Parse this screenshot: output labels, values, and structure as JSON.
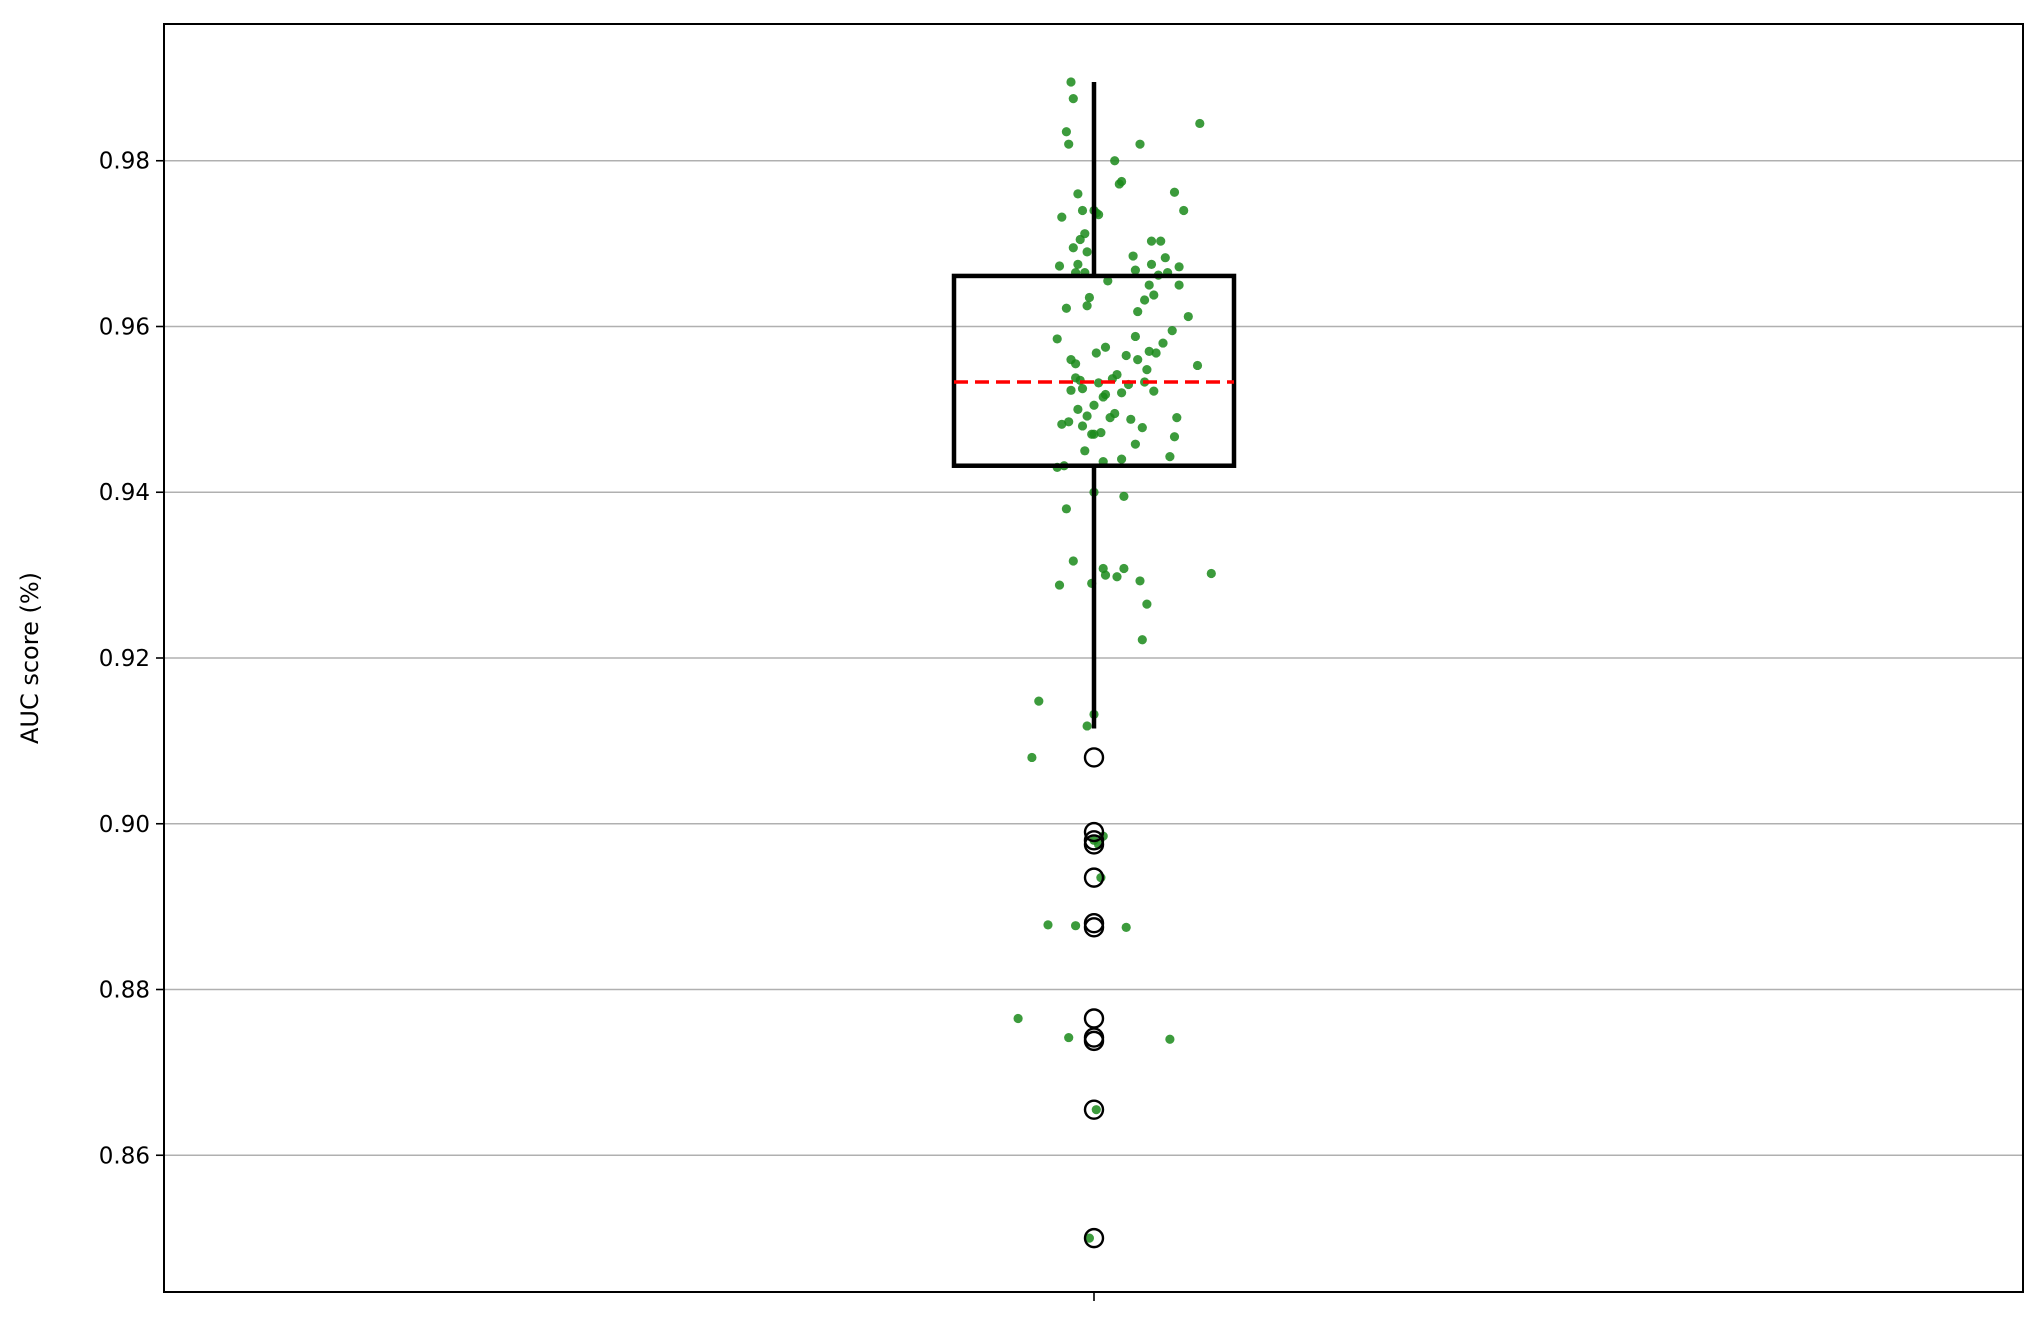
{
  "chart_data": {
    "type": "box",
    "ylabel": "AUC score (%)",
    "yticks": [
      "0.86",
      "0.88",
      "0.90",
      "0.92",
      "0.94",
      "0.96",
      "0.98"
    ],
    "ylim": [
      0.8435,
      0.9965
    ],
    "grid": "horizontal",
    "box": {
      "q1": 0.9432,
      "median": 0.9533,
      "q3": 0.9661,
      "whisker_low": 0.9115,
      "whisker_high": 0.9895,
      "outliers": [
        0.908,
        0.899,
        0.898,
        0.8975,
        0.8935,
        0.888,
        0.8875,
        0.8765,
        0.8742,
        0.8738,
        0.8655,
        0.85
      ]
    },
    "colors": {
      "points": "#1a8a1a",
      "median": "#ff0000",
      "box": "#000000",
      "grid": "#b0b0b0"
    },
    "points": [
      [
        -0.1,
        0.9895
      ],
      [
        -0.09,
        0.9875
      ],
      [
        -0.12,
        0.9835
      ],
      [
        -0.11,
        0.982
      ],
      [
        0.2,
        0.982
      ],
      [
        0.46,
        0.9845
      ],
      [
        0.09,
        0.98
      ],
      [
        0.12,
        0.9775
      ],
      [
        0.11,
        0.9772
      ],
      [
        0.35,
        0.9762
      ],
      [
        -0.07,
        0.976
      ],
      [
        -0.05,
        0.974
      ],
      [
        0.0,
        0.974
      ],
      [
        0.01,
        0.9737
      ],
      [
        0.39,
        0.974
      ],
      [
        0.02,
        0.9735
      ],
      [
        -0.14,
        0.9732
      ],
      [
        -0.04,
        0.9712
      ],
      [
        -0.06,
        0.9705
      ],
      [
        0.25,
        0.9703
      ],
      [
        0.29,
        0.9703
      ],
      [
        -0.03,
        0.969
      ],
      [
        -0.09,
        0.9695
      ],
      [
        0.17,
        0.9685
      ],
      [
        0.31,
        0.9683
      ],
      [
        -0.07,
        0.9675
      ],
      [
        0.25,
        0.9675
      ],
      [
        -0.15,
        0.9673
      ],
      [
        0.37,
        0.9672
      ],
      [
        0.18,
        0.9668
      ],
      [
        -0.08,
        0.9665
      ],
      [
        -0.04,
        0.9665
      ],
      [
        0.28,
        0.9662
      ],
      [
        0.32,
        0.9665
      ],
      [
        0.06,
        0.9655
      ],
      [
        0.24,
        0.965
      ],
      [
        0.37,
        0.965
      ],
      [
        0.26,
        0.9638
      ],
      [
        -0.02,
        0.9635
      ],
      [
        0.22,
        0.9632
      ],
      [
        -0.03,
        0.9625
      ],
      [
        -0.12,
        0.9622
      ],
      [
        0.19,
        0.9618
      ],
      [
        0.41,
        0.9612
      ],
      [
        0.34,
        0.9595
      ],
      [
        0.18,
        0.9588
      ],
      [
        -0.16,
        0.9585
      ],
      [
        0.3,
        0.958
      ],
      [
        0.05,
        0.9575
      ],
      [
        0.24,
        0.957
      ],
      [
        0.27,
        0.9568
      ],
      [
        0.01,
        0.9568
      ],
      [
        0.14,
        0.9565
      ],
      [
        -0.1,
        0.956
      ],
      [
        -0.08,
        0.9555
      ],
      [
        0.19,
        0.956
      ],
      [
        0.45,
        0.9553
      ],
      [
        0.23,
        0.9548
      ],
      [
        0.1,
        0.9542
      ],
      [
        -0.08,
        0.9538
      ],
      [
        0.08,
        0.9537
      ],
      [
        -0.06,
        0.9535
      ],
      [
        0.22,
        0.9533
      ],
      [
        0.02,
        0.9532
      ],
      [
        0.15,
        0.953
      ],
      [
        -0.05,
        0.9525
      ],
      [
        -0.1,
        0.9523
      ],
      [
        0.26,
        0.9522
      ],
      [
        0.12,
        0.952
      ],
      [
        0.05,
        0.9518
      ],
      [
        0.04,
        0.9515
      ],
      [
        0.0,
        0.9505
      ],
      [
        -0.07,
        0.95
      ],
      [
        0.09,
        0.9495
      ],
      [
        -0.03,
        0.9492
      ],
      [
        0.07,
        0.949
      ],
      [
        0.36,
        0.949
      ],
      [
        0.16,
        0.9488
      ],
      [
        -0.11,
        0.9485
      ],
      [
        -0.14,
        0.9482
      ],
      [
        -0.05,
        0.948
      ],
      [
        0.21,
        0.9478
      ],
      [
        0.03,
        0.9472
      ],
      [
        -0.01,
        0.947
      ],
      [
        0.35,
        0.9467
      ],
      [
        0.0,
        0.947
      ],
      [
        0.18,
        0.9458
      ],
      [
        -0.04,
        0.945
      ],
      [
        0.33,
        0.9443
      ],
      [
        0.12,
        0.944
      ],
      [
        0.04,
        0.9437
      ],
      [
        -0.13,
        0.9432
      ],
      [
        -0.16,
        0.943
      ],
      [
        0.0,
        0.94
      ],
      [
        0.13,
        0.9395
      ],
      [
        -0.12,
        0.938
      ],
      [
        -0.09,
        0.9317
      ],
      [
        0.04,
        0.9308
      ],
      [
        0.13,
        0.9308
      ],
      [
        0.51,
        0.9302
      ],
      [
        0.05,
        0.93
      ],
      [
        0.1,
        0.9298
      ],
      [
        0.2,
        0.9293
      ],
      [
        -0.01,
        0.929
      ],
      [
        -0.15,
        0.9288
      ],
      [
        0.23,
        0.9265
      ],
      [
        0.21,
        0.9222
      ],
      [
        -0.24,
        0.9148
      ],
      [
        -0.03,
        0.9118
      ],
      [
        0.0,
        0.9132
      ],
      [
        -0.27,
        0.908
      ],
      [
        0.04,
        0.8985
      ],
      [
        0.0,
        0.898
      ],
      [
        0.02,
        0.8975
      ],
      [
        0.03,
        0.8935
      ],
      [
        -0.2,
        0.8878
      ],
      [
        -0.08,
        0.8877
      ],
      [
        0.14,
        0.8875
      ],
      [
        -0.33,
        0.8765
      ],
      [
        -0.11,
        0.8742
      ],
      [
        0.33,
        0.874
      ],
      [
        0.01,
        0.8655
      ],
      [
        -0.02,
        0.85
      ]
    ]
  }
}
